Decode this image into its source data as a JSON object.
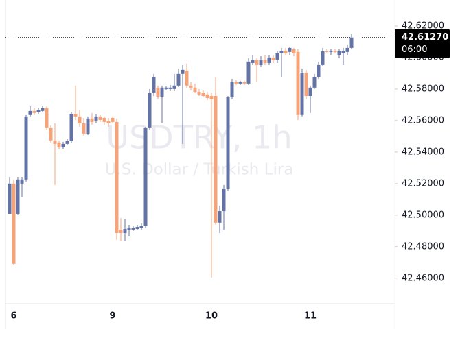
{
  "chart_data": {
    "type": "candlestick",
    "title": "USDTRY, 1h",
    "subtitle": "U.S. Dollar / Turkish Lira",
    "up_color": "#6473a6",
    "down_color": "#f7a379",
    "categories": [
      null,
      "6",
      null,
      null,
      null,
      null,
      null,
      null,
      null,
      null,
      null,
      null,
      null,
      null,
      null,
      null,
      null,
      null,
      null,
      null,
      null,
      null,
      null,
      null,
      null,
      "9",
      null,
      null,
      null,
      null,
      null,
      null,
      null,
      null,
      null,
      null,
      null,
      null,
      null,
      null,
      null,
      null,
      null,
      null,
      null,
      null,
      null,
      null,
      null,
      "10",
      null,
      null,
      null,
      null,
      null,
      null,
      null,
      null,
      null,
      null,
      null,
      null,
      null,
      null,
      null,
      null,
      null,
      null,
      null,
      null,
      null,
      null,
      null,
      "11",
      null,
      null,
      null,
      null,
      null,
      null,
      null,
      null,
      null,
      null
    ],
    "open": [
      42.5008,
      42.52,
      42.5008,
      42.52,
      42.5226,
      42.5635,
      42.5661,
      42.5652,
      42.5661,
      42.5678,
      42.5552,
      42.5474,
      42.5461,
      42.543,
      42.5452,
      42.5469,
      42.5643,
      42.5626,
      42.5582,
      42.5517,
      42.5613,
      42.56,
      42.5626,
      42.5617,
      42.5595,
      42.5617,
      42.5591,
      42.4908,
      42.4886,
      42.4904,
      42.4908,
      42.4912,
      42.4917,
      42.493,
      42.5552,
      42.5778,
      42.5809,
      42.5752,
      42.58,
      42.58,
      42.58,
      42.5822,
      42.5896,
      42.5917,
      42.5822,
      42.5809,
      42.5782,
      42.5774,
      42.5765,
      42.5756,
      42.5756,
      42.4952,
      42.5025,
      42.5169,
      42.5748,
      42.5843,
      42.5835,
      42.5843,
      42.5835,
      42.5965,
      42.5983,
      42.5952,
      42.5983,
      42.5965,
      42.6,
      42.5983,
      42.6026,
      42.6043,
      42.6035,
      42.6052,
      42.6035,
      42.5635,
      42.5904,
      42.5756,
      42.5809,
      42.5878,
      42.5952,
      42.6039,
      42.6035,
      42.6043,
      42.6017,
      42.6026,
      42.6035,
      42.6061
    ],
    "high": [
      42.5243,
      42.5226,
      42.5243,
      42.5243,
      42.5635,
      42.5691,
      42.5678,
      42.5678,
      42.5691,
      42.5691,
      42.5569,
      42.5582,
      42.5474,
      42.5465,
      42.5482,
      42.5656,
      42.5822,
      42.5669,
      42.5617,
      42.5626,
      42.5648,
      42.5639,
      42.5635,
      42.5626,
      42.5617,
      42.5626,
      42.5613,
      42.4982,
      42.4973,
      42.4938,
      42.493,
      42.4938,
      42.4947,
      42.5561,
      42.58,
      42.5896,
      42.5822,
      42.5822,
      42.5817,
      42.5826,
      42.5896,
      42.593,
      42.5952,
      42.5961,
      42.5843,
      42.5835,
      42.58,
      42.5791,
      42.5782,
      42.5778,
      42.5874,
      42.506,
      42.5191,
      42.5756,
      42.5865,
      42.5856,
      42.5852,
      42.5852,
      42.5996,
      42.6017,
      42.5996,
      42.6009,
      42.6017,
      42.6017,
      42.6017,
      42.6039,
      42.6061,
      42.6061,
      42.6069,
      42.6061,
      42.6052,
      42.593,
      42.5922,
      42.5822,
      42.5896,
      42.5974,
      42.6061,
      42.6052,
      42.6052,
      42.6052,
      42.6052,
      42.6061,
      42.6083,
      42.6148
    ],
    "low": [
      42.5008,
      42.4682,
      42.5004,
      42.5113,
      42.5213,
      42.5626,
      42.5635,
      42.5643,
      42.5652,
      42.5539,
      42.5461,
      42.5191,
      42.5417,
      42.5421,
      42.5443,
      42.5461,
      42.5604,
      42.5561,
      42.5504,
      42.5508,
      42.5574,
      42.5582,
      42.5591,
      42.5574,
      42.5561,
      42.5582,
      42.4843,
      42.4834,
      42.4834,
      42.4865,
      42.4899,
      42.4904,
      42.4908,
      42.4921,
      42.5539,
      42.5756,
      42.5735,
      42.5582,
      42.5791,
      42.5787,
      42.5787,
      42.5813,
      42.5452,
      42.5809,
      42.5791,
      42.5774,
      42.5756,
      42.5748,
      42.573,
      42.4604,
      42.4939,
      42.4886,
      42.4908,
      42.5156,
      42.5735,
      42.5826,
      42.5826,
      42.5826,
      42.5826,
      42.5952,
      42.5843,
      42.5939,
      42.5952,
      42.5952,
      42.5965,
      42.5965,
      42.5878,
      42.6017,
      42.6017,
      42.6009,
      42.5604,
      42.5626,
      42.5735,
      42.5648,
      42.58,
      42.5865,
      42.5943,
      42.6026,
      42.6017,
      42.6026,
      42.5996,
      42.5952,
      42.6017,
      42.6052
    ],
    "close": [
      42.52,
      42.4691,
      42.5226,
      42.5226,
      42.5626,
      42.5661,
      42.5648,
      42.5669,
      42.5678,
      42.5552,
      42.5474,
      42.5452,
      42.543,
      42.5452,
      42.5469,
      42.5643,
      42.5626,
      42.5582,
      42.5517,
      42.5613,
      42.5591,
      42.5626,
      42.5604,
      42.5591,
      42.5582,
      42.5591,
      42.4886,
      42.4886,
      42.4912,
      42.4921,
      42.4917,
      42.4925,
      42.493,
      42.5552,
      42.5778,
      42.5878,
      42.5752,
      42.5809,
      42.5809,
      42.5809,
      42.5822,
      42.5896,
      42.5922,
      42.5822,
      42.5809,
      42.5782,
      42.5765,
      42.5756,
      42.5743,
      42.5735,
      42.4952,
      42.5025,
      42.5169,
      42.5748,
      42.5843,
      42.5835,
      42.5843,
      42.5835,
      42.5974,
      42.5983,
      42.5952,
      42.5983,
      42.5965,
      42.6,
      42.5983,
      42.6026,
      42.6043,
      42.6026,
      42.6061,
      42.6026,
      42.5635,
      42.5904,
      42.5756,
      42.5809,
      42.5878,
      42.5952,
      42.6039,
      42.6035,
      42.6043,
      42.6035,
      42.6039,
      42.6043,
      42.6061,
      42.6127
    ],
    "ylim": [
      42.4438,
      42.6365
    ],
    "yticks": [
      {
        "value": 42.46,
        "label": "42.46000"
      },
      {
        "value": 42.48,
        "label": "42.48000"
      },
      {
        "value": 42.5,
        "label": "42.50000"
      },
      {
        "value": 42.52,
        "label": "42.52000"
      },
      {
        "value": 42.54,
        "label": "42.54000"
      },
      {
        "value": 42.56,
        "label": "42.56000"
      },
      {
        "value": 42.58,
        "label": "42.58000"
      },
      {
        "value": 42.6,
        "label": "42.60000"
      },
      {
        "value": 42.62,
        "label": "42.62000"
      }
    ],
    "last_price": {
      "value": 42.6127,
      "label": "42.61270"
    },
    "last_time": "06:00"
  }
}
